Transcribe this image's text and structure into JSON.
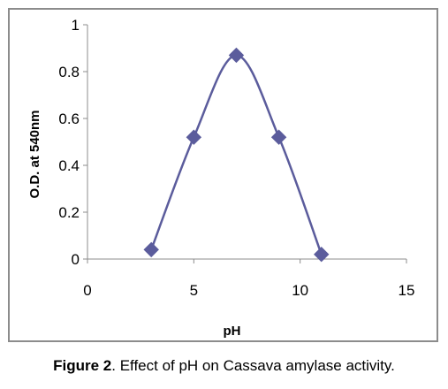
{
  "chart_data": {
    "type": "scatter",
    "smooth_line": true,
    "title": "",
    "xlabel": "pH",
    "ylabel": "O.D. at 540nm",
    "xlim": [
      0,
      15
    ],
    "ylim": [
      0,
      1
    ],
    "x_ticks": [
      "0",
      "5",
      "10",
      "15"
    ],
    "y_ticks": [
      "0",
      "0.2",
      "0.4",
      "0.6",
      "0.8",
      "1"
    ],
    "grid": false,
    "legend": "none",
    "series": [
      {
        "x": [
          3,
          5,
          7,
          9,
          11
        ],
        "y": [
          0.04,
          0.52,
          0.87,
          0.52,
          0.02
        ],
        "color": "#5b5c9c",
        "marker": "diamond"
      }
    ]
  },
  "caption": {
    "label": "Figure 2",
    "text": ". Effect of pH on Cassava amylase activity."
  }
}
